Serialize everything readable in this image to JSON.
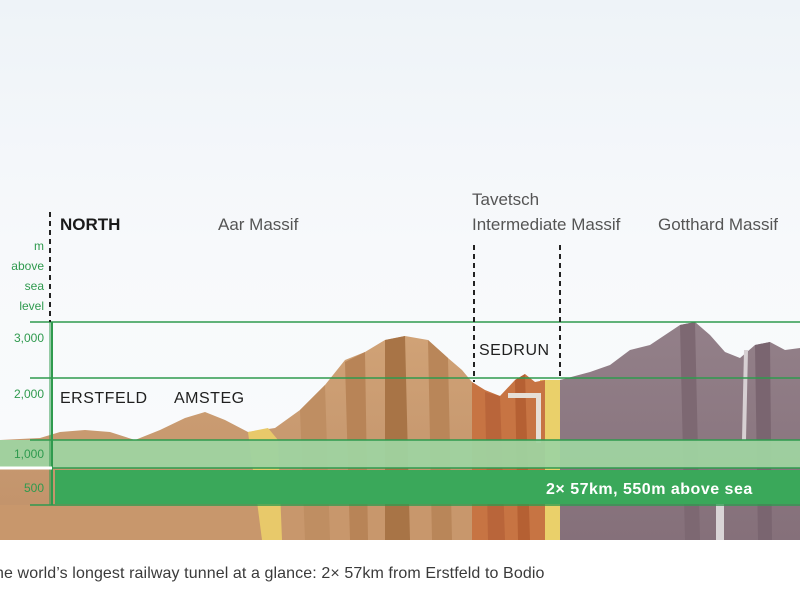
{
  "direction": "NORTH",
  "axis": {
    "unit_lines": [
      "m",
      "above",
      "sea",
      "level"
    ],
    "ticks": [
      "3,000",
      "2,000",
      "1,000",
      "500"
    ]
  },
  "massifs": {
    "aar": "Aar Massif",
    "tavetsch_line1": "Tavetsch",
    "tavetsch_line2": "Intermediate Massif",
    "gotthard": "Gotthard Massif"
  },
  "places": {
    "erstfeld": "ERSTFELD",
    "amsteg": "AMSTEG",
    "sedrun": "SEDRUN"
  },
  "tunnel_label": "2× 57km, 550m above sea",
  "caption": "he world’s longest railway tunnel at a glance: 2× 57km from Erstfeld to Bodio",
  "colors": {
    "axis_green": "#2f9a4e",
    "tunnel_green": "#3aa85a",
    "band_green": "#9fd3a0",
    "aar_rock": "#c89a6c",
    "tavetsch_rock": "#c77443",
    "gotthard_rock": "#8b7580",
    "yellow_zone": "#ead06a"
  }
}
